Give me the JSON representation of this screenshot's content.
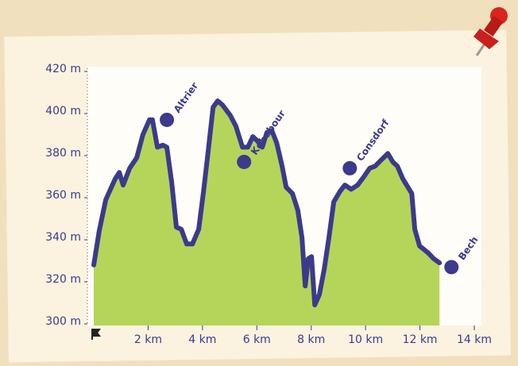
{
  "chart_data": {
    "type": "area",
    "x": [
      0,
      0.2,
      0.44,
      0.79,
      0.94,
      1.08,
      1.32,
      1.58,
      1.81,
      2.05,
      2.16,
      2.34,
      2.54,
      2.69,
      2.87,
      3.04,
      3.22,
      3.42,
      3.63,
      3.86,
      4.04,
      4.21,
      4.39,
      4.56,
      4.74,
      5.03,
      5.23,
      5.47,
      5.67,
      5.85,
      6.02,
      6.2,
      6.37,
      6.55,
      6.73,
      6.93,
      7.08,
      7.31,
      7.51,
      7.66,
      7.78,
      7.89,
      8.01,
      8.13,
      8.3,
      8.48,
      8.65,
      8.83,
      9.06,
      9.24,
      9.47,
      9.71,
      9.94,
      10.15,
      10.35,
      10.58,
      10.82,
      11.0,
      11.17,
      11.37,
      11.7,
      11.81,
      11.99,
      12.28,
      12.51,
      12.72
    ],
    "values": [
      328,
      344,
      359,
      369,
      372,
      366,
      374,
      379,
      390,
      397,
      397,
      384,
      385,
      384,
      367,
      346,
      345,
      338,
      338,
      345,
      363,
      382,
      403,
      406,
      404,
      399,
      394,
      384,
      384,
      389,
      387,
      384,
      391,
      392,
      386,
      375,
      365,
      362,
      354,
      341,
      318,
      331,
      332,
      309,
      314,
      326,
      341,
      358,
      363,
      366,
      364,
      366,
      370,
      374,
      375,
      378,
      381,
      377,
      375,
      369,
      362,
      345,
      337,
      334,
      331,
      329
    ],
    "line_color": "#3b3a8c",
    "fill_color": "#b5d55a",
    "xlim": [
      0,
      14
    ],
    "xticks": [
      {
        "value": 2,
        "label": "2 km"
      },
      {
        "value": 4,
        "label": "4 km"
      },
      {
        "value": 6,
        "label": "6 km"
      },
      {
        "value": 8,
        "label": "8 km"
      },
      {
        "value": 10,
        "label": "10 km"
      },
      {
        "value": 12,
        "label": "12 km"
      },
      {
        "value": 14,
        "label": "14 km"
      }
    ],
    "ylim": [
      300,
      420
    ],
    "yticks": [
      {
        "value": 300,
        "label": "300 m"
      },
      {
        "value": 320,
        "label": "320 m"
      },
      {
        "value": 340,
        "label": "340 m"
      },
      {
        "value": 360,
        "label": "360 m"
      },
      {
        "value": 380,
        "label": "380 m"
      },
      {
        "value": 400,
        "label": "400 m"
      },
      {
        "value": 420,
        "label": "420 m"
      }
    ],
    "grid": true,
    "waypoints": [
      {
        "name": "Altrier",
        "x": 2.69,
        "y": 397
      },
      {
        "name": "Kobebour",
        "x": 5.53,
        "y": 377
      },
      {
        "name": "Consdorf",
        "x": 9.42,
        "y": 374
      },
      {
        "name": "Bech",
        "x": 13.16,
        "y": 327
      }
    ]
  }
}
